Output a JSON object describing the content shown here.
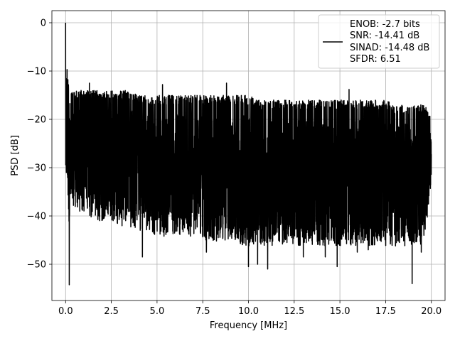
{
  "chart_data": {
    "type": "line",
    "xlabel": "Frequency [MHz]",
    "ylabel": "PSD [dB]",
    "xlim": [
      -0.75,
      20.75
    ],
    "ylim": [
      -57.5,
      2.5
    ],
    "xticks": [
      0.0,
      2.5,
      5.0,
      7.5,
      10.0,
      12.5,
      15.0,
      17.5,
      20.0
    ],
    "xtick_labels": [
      "0.0",
      "2.5",
      "5.0",
      "7.5",
      "10.0",
      "12.5",
      "15.0",
      "17.5",
      "20.0"
    ],
    "yticks": [
      0,
      -10,
      -20,
      -30,
      -40,
      -50
    ],
    "ytick_labels": [
      "0",
      "−10",
      "−20",
      "−30",
      "−40",
      "−50"
    ],
    "grid": true,
    "legend": {
      "placement": "top-right",
      "lines": [
        "ENOB: -2.7 bits",
        "SNR: -14.41 dB",
        "SINAD: -14.48 dB",
        "SFDR: 6.51"
      ]
    },
    "series": [
      {
        "color": "#000000",
        "x": [
          0.0,
          0.02,
          0.05,
          0.08,
          0.1,
          0.12,
          0.15,
          0.18,
          0.2,
          0.22,
          0.25,
          0.3,
          0.35,
          0.4,
          0.5,
          0.6,
          0.7,
          0.8,
          0.9,
          1.0,
          1.2,
          1.5,
          2.0,
          2.5,
          3.0,
          3.5,
          4.0,
          4.5,
          5.0,
          5.5,
          6.0,
          6.5,
          7.0,
          7.5,
          8.0,
          8.5,
          9.0,
          9.5,
          10.0,
          10.5,
          11.0,
          11.5,
          12.0,
          12.5,
          13.0,
          13.5,
          14.0,
          14.5,
          15.0,
          15.5,
          16.0,
          16.5,
          17.0,
          17.5,
          18.0,
          18.5,
          19.0,
          19.5,
          20.0
        ],
        "upper": [
          0.0,
          -4,
          -8,
          -10,
          -12,
          -13,
          -14,
          -15,
          -15,
          -15,
          -15,
          -15,
          -16,
          -16,
          -16,
          -16,
          -16,
          -16,
          -16,
          -16,
          -16,
          -16,
          -16,
          -16,
          -16,
          -16,
          -17,
          -17,
          -17,
          -17,
          -17,
          -17,
          -17,
          -17,
          -17,
          -17,
          -17,
          -17,
          -17,
          -18,
          -18,
          -18,
          -18,
          -18,
          -18,
          -18,
          -18,
          -18,
          -18,
          -18,
          -18,
          -18,
          -18,
          -18,
          -19,
          -19,
          -19,
          -19,
          -20
        ],
        "lower": [
          -31,
          -30,
          -31,
          -30,
          -32,
          -34,
          -38,
          -40,
          -55,
          -38,
          -36,
          -36,
          -37,
          -37,
          -37,
          -37,
          -38,
          -38,
          -38,
          -38,
          -39,
          -40,
          -40,
          -40,
          -41,
          -41,
          -42,
          -42,
          -43,
          -43,
          -43,
          -43,
          -43,
          -44,
          -44,
          -44,
          -44,
          -45,
          -45,
          -45,
          -45,
          -45,
          -45,
          -45,
          -45,
          -45,
          -45,
          -45,
          -45,
          -45,
          -45,
          -45,
          -45,
          -45,
          -45,
          -45,
          -45,
          -45,
          -35
        ],
        "spikes": [
          [
            1.3,
            -12.5
          ],
          [
            4.2,
            -48.5
          ],
          [
            5.3,
            -12.8
          ],
          [
            7.7,
            -47.5
          ],
          [
            8.8,
            -12.5
          ],
          [
            10.0,
            -50.5
          ],
          [
            10.5,
            -50.0
          ],
          [
            11.05,
            -51.0
          ],
          [
            13.0,
            -48.5
          ],
          [
            14.2,
            -48.5
          ],
          [
            14.85,
            -50.5
          ],
          [
            15.5,
            -13.8
          ],
          [
            15.95,
            -47.5
          ],
          [
            16.55,
            -47.0
          ],
          [
            18.95,
            -54.0
          ],
          [
            19.45,
            -47.5
          ]
        ]
      }
    ]
  }
}
